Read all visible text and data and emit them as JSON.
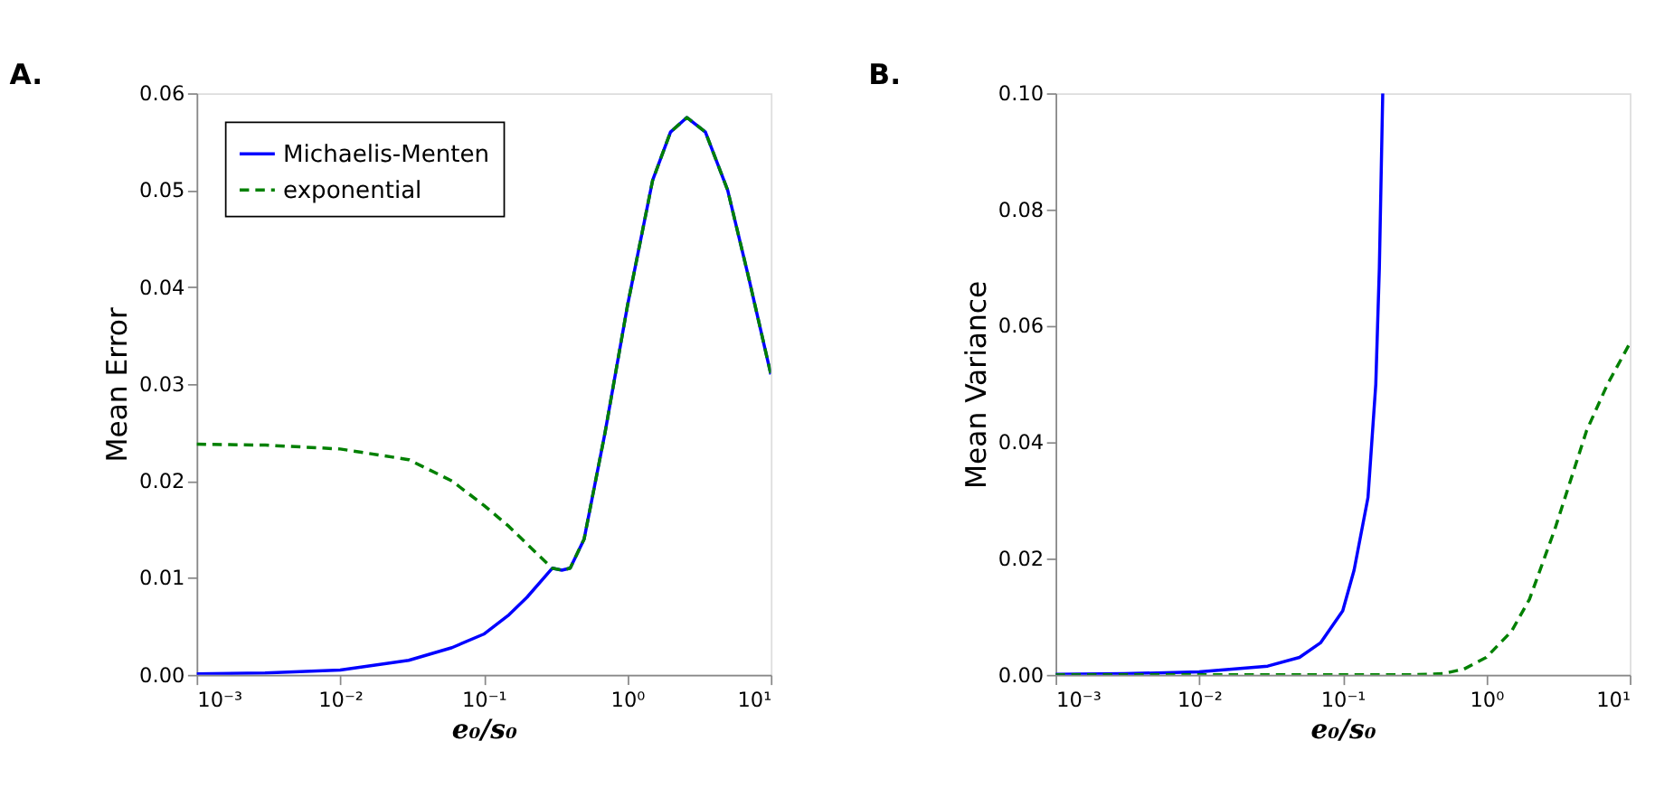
{
  "chart_data": [
    {
      "type": "line",
      "title": "A.",
      "xlabel": "e₀/s₀",
      "ylabel": "Mean Error",
      "log": "x",
      "legend": "top left",
      "marker": "none",
      "grid": false,
      "xlim": [
        0.001,
        10
      ],
      "xticks": [
        {
          "value": 0.001,
          "label": "10⁻³"
        },
        {
          "value": 0.01,
          "label": "10⁻²"
        },
        {
          "value": 0.1,
          "label": "10⁻¹"
        },
        {
          "value": 1,
          "label": "10⁰"
        },
        {
          "value": 10,
          "label": "10¹"
        }
      ],
      "ylim": [
        0,
        0.06
      ],
      "yticks": [
        {
          "value": 0,
          "label": "0.00"
        },
        {
          "value": 0.01,
          "label": "0.01"
        },
        {
          "value": 0.02,
          "label": "0.02"
        },
        {
          "value": 0.03,
          "label": "0.03"
        },
        {
          "value": 0.04,
          "label": "0.04"
        },
        {
          "value": 0.05,
          "label": "0.05"
        },
        {
          "value": 0.06,
          "label": "0.06"
        }
      ],
      "series": [
        {
          "name": "Michaelis-Menten",
          "color": "#0000ff",
          "line_style": "solid",
          "x": [
            0.001,
            0.003,
            0.01,
            0.03,
            0.06,
            0.1,
            0.15,
            0.2,
            0.3,
            0.35,
            0.4,
            0.5,
            0.7,
            1,
            1.5,
            2,
            2.6,
            3.5,
            5,
            7,
            10
          ],
          "values": [
            0.0001,
            0.0002,
            0.0005,
            0.0015,
            0.0028,
            0.0042,
            0.0062,
            0.008,
            0.011,
            0.0108,
            0.011,
            0.014,
            0.025,
            0.038,
            0.051,
            0.056,
            0.0575,
            0.056,
            0.05,
            0.041,
            0.031
          ]
        },
        {
          "name": "exponential",
          "color": "#008000",
          "line_style": "dashed",
          "x": [
            0.001,
            0.003,
            0.01,
            0.03,
            0.06,
            0.1,
            0.15,
            0.2,
            0.3,
            0.35,
            0.4,
            0.5,
            0.7,
            1,
            1.5,
            2,
            2.6,
            3.5,
            5,
            7,
            10
          ],
          "values": [
            0.0238,
            0.0237,
            0.0233,
            0.0222,
            0.02,
            0.0175,
            0.0153,
            0.0135,
            0.011,
            0.0108,
            0.011,
            0.014,
            0.025,
            0.038,
            0.051,
            0.056,
            0.0575,
            0.056,
            0.05,
            0.041,
            0.031
          ]
        }
      ]
    },
    {
      "type": "line",
      "title": "B.",
      "xlabel": "e₀/s₀",
      "ylabel": "Mean Variance",
      "log": "x",
      "legend": false,
      "marker": "none",
      "grid": false,
      "xlim": [
        0.001,
        10
      ],
      "xticks": [
        {
          "value": 0.001,
          "label": "10⁻³"
        },
        {
          "value": 0.01,
          "label": "10⁻²"
        },
        {
          "value": 0.1,
          "label": "10⁻¹"
        },
        {
          "value": 1,
          "label": "10⁰"
        },
        {
          "value": 10,
          "label": "10¹"
        }
      ],
      "ylim": [
        0,
        0.1
      ],
      "yticks": [
        {
          "value": 0,
          "label": "0.00"
        },
        {
          "value": 0.02,
          "label": "0.02"
        },
        {
          "value": 0.04,
          "label": "0.04"
        },
        {
          "value": 0.06,
          "label": "0.06"
        },
        {
          "value": 0.08,
          "label": "0.08"
        },
        {
          "value": 0.1,
          "label": "0.10"
        }
      ],
      "series": [
        {
          "color": "#0000ff",
          "line_style": "solid",
          "x": [
            0.001,
            0.003,
            0.01,
            0.03,
            0.05,
            0.07,
            0.1,
            0.12,
            0.15,
            0.17,
            0.18,
            0.19
          ],
          "values": [
            0.0001,
            0.0002,
            0.0005,
            0.0015,
            0.003,
            0.0055,
            0.011,
            0.018,
            0.0305,
            0.05,
            0.07,
            0.1
          ]
        },
        {
          "color": "#008000",
          "line_style": "dashed",
          "x": [
            0.001,
            0.01,
            0.1,
            0.3,
            0.5,
            0.7,
            1,
            1.5,
            2,
            3,
            5,
            7,
            10
          ],
          "values": [
            0,
            0,
            0,
            0,
            0.0002,
            0.001,
            0.003,
            0.0075,
            0.013,
            0.025,
            0.042,
            0.05,
            0.057
          ]
        }
      ]
    }
  ]
}
